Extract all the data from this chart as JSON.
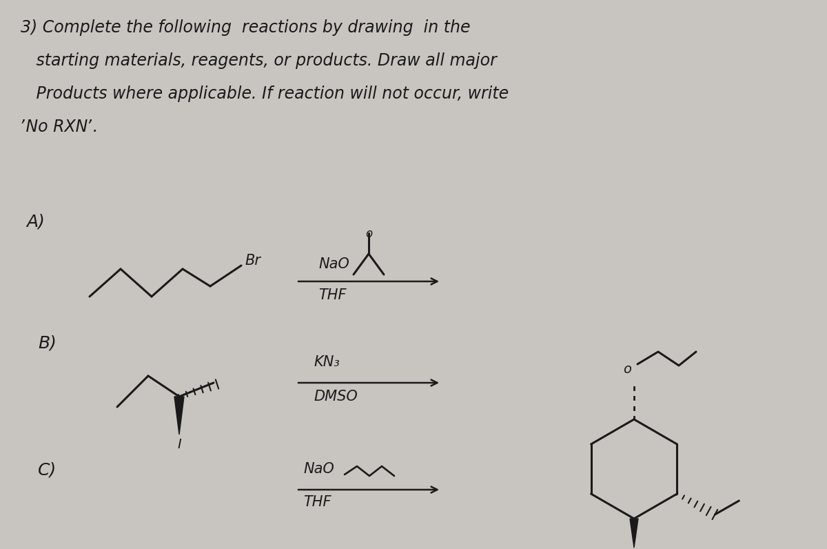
{
  "bg_color": "#c8c5c0",
  "text_color": "#1a1a1a",
  "title_lines": [
    "3) Complete the following  reactions by drawing  in the",
    "   starting materials, reagents, or products. Draw all major",
    "   Products where applicable. If reaction will not occur, write",
    "ʼNo RXNʼ."
  ],
  "section_A_label": "A)",
  "section_B_label": "B)",
  "section_C_label": "C)",
  "reagent_A_top": "NaO",
  "reagent_A_bot": "THF",
  "reagent_B_top": "KN₃",
  "reagent_B_bot": "DMSO",
  "reagent_C_top": "NaO",
  "reagent_C_bot": "THF",
  "label_Br": "Br",
  "label_I": "I"
}
